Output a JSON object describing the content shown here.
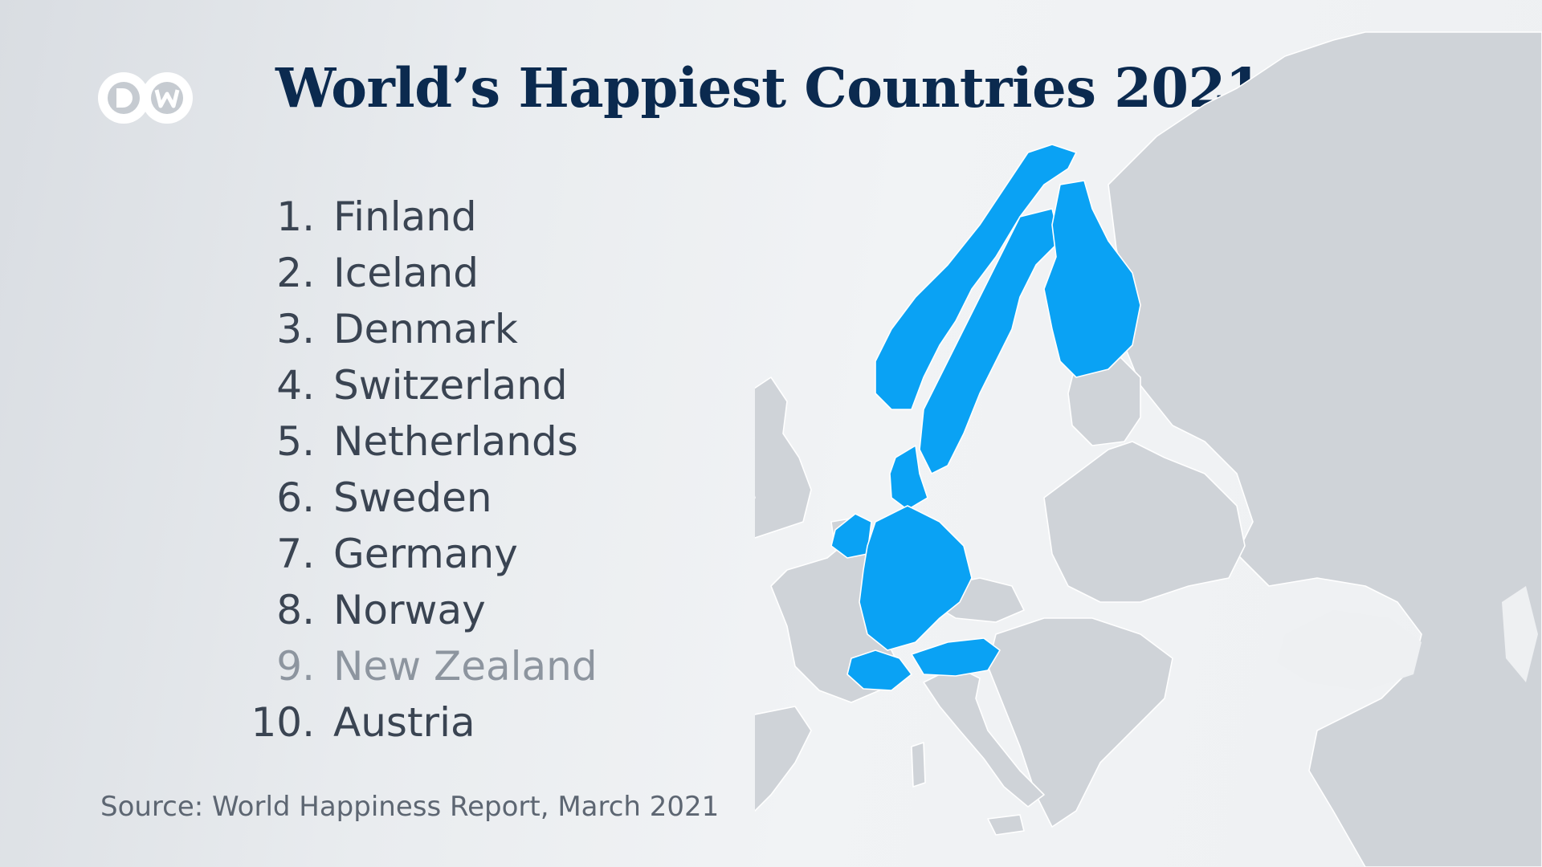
{
  "brand": {
    "logo_text": "DW"
  },
  "title": "World’s Happiest Countries 2021",
  "ranking": [
    {
      "rank": "1.",
      "country": "Finland",
      "highlighted": true
    },
    {
      "rank": "2.",
      "country": "Iceland",
      "highlighted": true
    },
    {
      "rank": "3.",
      "country": "Denmark",
      "highlighted": true
    },
    {
      "rank": "4.",
      "country": "Switzerland",
      "highlighted": true
    },
    {
      "rank": "5.",
      "country": "Netherlands",
      "highlighted": true
    },
    {
      "rank": "6.",
      "country": "Sweden",
      "highlighted": true
    },
    {
      "rank": "7.",
      "country": "Germany",
      "highlighted": true
    },
    {
      "rank": "8.",
      "country": "Norway",
      "highlighted": true
    },
    {
      "rank": "9.",
      "country": "New Zealand",
      "highlighted": false
    },
    {
      "rank": "10.",
      "country": "Austria",
      "highlighted": true
    }
  ],
  "source": "Source: World Happiness Report, March 2021",
  "colors": {
    "title": "#0b2a4f",
    "highlight": "#0aa2f4",
    "land": "#cfd3d8",
    "text": "#3a4452",
    "muted_text": "#8d959f"
  },
  "map": {
    "highlighted_countries": [
      "Iceland",
      "Norway",
      "Sweden",
      "Finland",
      "Denmark",
      "Netherlands",
      "Germany",
      "Switzerland",
      "Austria"
    ]
  }
}
